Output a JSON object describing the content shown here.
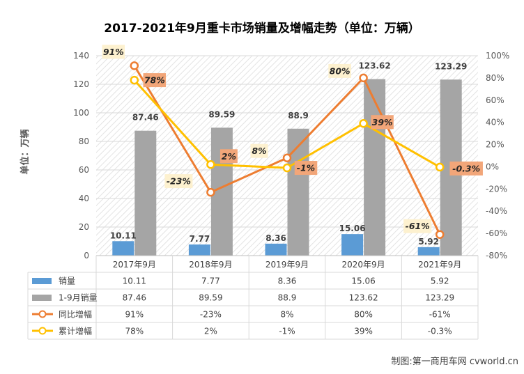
{
  "chart_data": {
    "type": "bar",
    "title": "2017-2021年9月重卡市场销量及增幅走势（单位：万辆）",
    "ylabel": "单位：万辆",
    "ylim": [
      0,
      140
    ],
    "y2lim": [
      -80,
      100
    ],
    "y_ticks": [
      "0",
      "20",
      "40",
      "60",
      "80",
      "100",
      "120",
      "140"
    ],
    "y2_ticks": [
      "-80%",
      "-60%",
      "-40%",
      "-20%",
      "0%",
      "20%",
      "40%",
      "60%",
      "80%",
      "100%"
    ],
    "categories": [
      "2017年9月",
      "2018年9月",
      "2019年9月",
      "2020年9月",
      "2021年9月"
    ],
    "series": [
      {
        "name": "销量",
        "kind": "bar",
        "axis": "left",
        "color": "#5B9BD5",
        "values": [
          10.11,
          7.77,
          8.36,
          15.06,
          5.92
        ],
        "labels": [
          "10.11",
          "7.77",
          "8.36",
          "15.06",
          "5.92"
        ]
      },
      {
        "name": "1-9月销量",
        "kind": "bar",
        "axis": "left",
        "color": "#A5A5A5",
        "values": [
          87.46,
          89.59,
          88.9,
          123.62,
          123.29
        ],
        "labels": [
          "87.46",
          "89.59",
          "88.9",
          "123.62",
          "123.29"
        ]
      },
      {
        "name": "同比增幅",
        "kind": "line",
        "axis": "right",
        "color": "#ED7D31",
        "values": [
          91,
          -23,
          8,
          80,
          -61
        ],
        "labels": [
          "91%",
          "-23%",
          "8%",
          "80%",
          "-61%"
        ]
      },
      {
        "name": "累计增幅",
        "kind": "line",
        "axis": "right",
        "color": "#FFC000",
        "values": [
          78,
          2,
          -1,
          39,
          -0.3
        ],
        "labels": [
          "78%",
          "2%",
          "-1%",
          "39%",
          "-0.3%"
        ]
      }
    ],
    "data_table": true,
    "grid": true,
    "source_note": "制图:第一商用车网 cvworld.cn"
  }
}
